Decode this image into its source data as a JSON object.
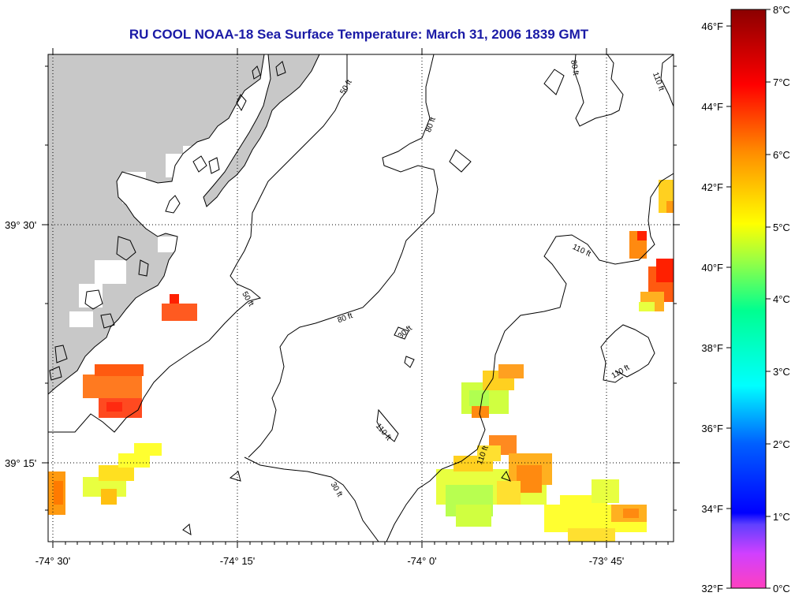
{
  "title": "RU COOL  NOAA-18  Sea Surface Temperature:  March 31, 2006 1839 GMT",
  "colors": {
    "title": "#1a1aa6",
    "land": "#c8c8c8",
    "cloud": "#ffffff",
    "scale_min": "#ff40c0",
    "scale_max": "#8b0000"
  },
  "map": {
    "lat_labels": [
      "39° 30'",
      "39° 15'"
    ],
    "lon_labels": [
      "-74° 30'",
      "-74° 15'",
      "-74° 0'",
      "-73° 45'"
    ],
    "contours": [
      "50 ft",
      "80 ft",
      "110 ft",
      "30 ft"
    ]
  },
  "colorbar": {
    "fahrenheit": [
      "46°F",
      "44°F",
      "42°F",
      "40°F",
      "38°F",
      "36°F",
      "34°F",
      "32°F"
    ],
    "celsius": [
      "8°C",
      "7°C",
      "6°C",
      "5°C",
      "4°C",
      "3°C",
      "2°C",
      "1°C",
      "0°C"
    ],
    "range_c": [
      0,
      8
    ],
    "range_f": [
      32,
      46.4
    ]
  }
}
